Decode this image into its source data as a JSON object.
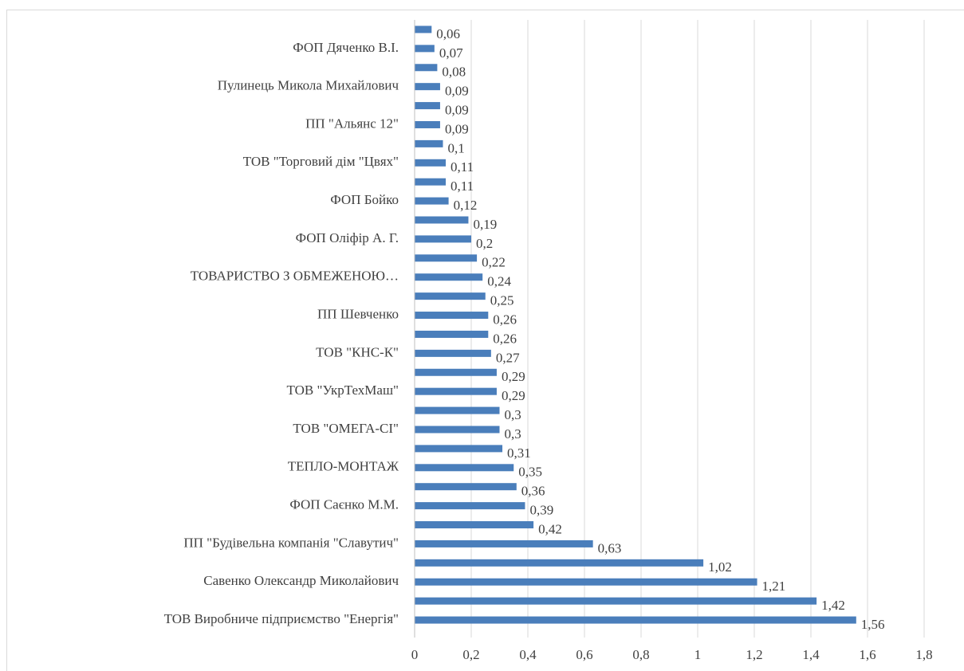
{
  "chart_data": {
    "type": "bar",
    "orientation": "horizontal",
    "categories": [
      "ТОВ Виробниче підприємство \"Енергія\"",
      null,
      "Савенко Олександр Миколайович",
      null,
      "ПП \"Будівельна компанія \"Славутич\"",
      null,
      "ФОП Саєнко М.М.",
      null,
      "ТЕПЛО-МОНТАЖ",
      null,
      "ТОВ \"ОМЕГА-СІ\"",
      null,
      "ТОВ \"УкрТехМаш\"",
      null,
      "ТОВ \"КНС-К\"",
      null,
      "ПП Шевченко",
      null,
      "ТОВАРИСТВО З ОБМЕЖЕНОЮ…",
      null,
      "ФОП Оліфір А. Г.",
      null,
      "ФОП Бойко",
      null,
      "ТОВ \"Торговий дім \"Цвях\"",
      null,
      "ПП \"Альянс 12\"",
      null,
      "Пулинець Микола Михайлович",
      null,
      "ФОП Дяченко В.І.",
      null
    ],
    "values": [
      1.56,
      1.42,
      1.21,
      1.02,
      0.63,
      0.42,
      0.39,
      0.36,
      0.35,
      0.31,
      0.3,
      0.3,
      0.29,
      0.29,
      0.27,
      0.26,
      0.26,
      0.25,
      0.24,
      0.22,
      0.2,
      0.19,
      0.12,
      0.11,
      0.11,
      0.1,
      0.09,
      0.09,
      0.09,
      0.08,
      0.07,
      0.06
    ],
    "value_labels": [
      "1,56",
      "1,42",
      "1,21",
      "1,02",
      "0,63",
      "0,42",
      "0,39",
      "0,36",
      "0,35",
      "0,31",
      "0,3",
      "0,3",
      "0,29",
      "0,29",
      "0,27",
      "0,26",
      "0,26",
      "0,25",
      "0,24",
      "0,22",
      "0,2",
      "0,19",
      "0,12",
      "0,11",
      "0,11",
      "0,1",
      "0,09",
      "0,09",
      "0,09",
      "0,08",
      "0,07",
      "0,06"
    ],
    "color": "#4a7ebb",
    "xlim": [
      0,
      1.8
    ],
    "xticks": [
      0,
      {
        "value": 0.2,
        "label": "0,2"
      },
      {
        "value": 0.4,
        "label": "0,4"
      },
      {
        "value": 0.6,
        "label": "0,6"
      },
      {
        "value": 0.8,
        "label": "0,8"
      },
      1,
      {
        "value": 1.2,
        "label": "1,2"
      },
      {
        "value": 1.4,
        "label": "1,4"
      },
      {
        "value": 1.6,
        "label": "1,6"
      },
      {
        "value": 1.8,
        "label": "1,8"
      }
    ],
    "grid": true
  }
}
